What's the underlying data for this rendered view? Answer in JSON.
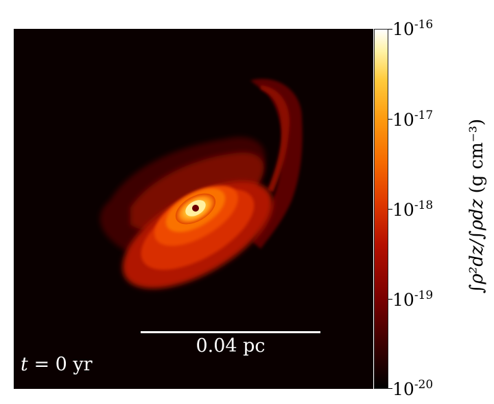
{
  "panel": {
    "scale_bar_label": "0.04 pc",
    "time_label": {
      "symbol": "t",
      "rest": " = 0 yr"
    }
  },
  "colorbar": {
    "ticks": [
      {
        "base": "10",
        "exp": "-16"
      },
      {
        "base": "10",
        "exp": "-17"
      },
      {
        "base": "10",
        "exp": "-18"
      },
      {
        "base": "10",
        "exp": "-19"
      },
      {
        "base": "10",
        "exp": "-20"
      }
    ],
    "label": {
      "math": "∫ρ²dz/∫ρdz",
      "units": " (g cm⁻³)"
    },
    "colors": [
      "#000000",
      "#3a0000",
      "#7a0000",
      "#b51000",
      "#e03a00",
      "#f56a00",
      "#fd9a10",
      "#ffcb3c",
      "#fff3a6",
      "#ffffff"
    ]
  }
}
